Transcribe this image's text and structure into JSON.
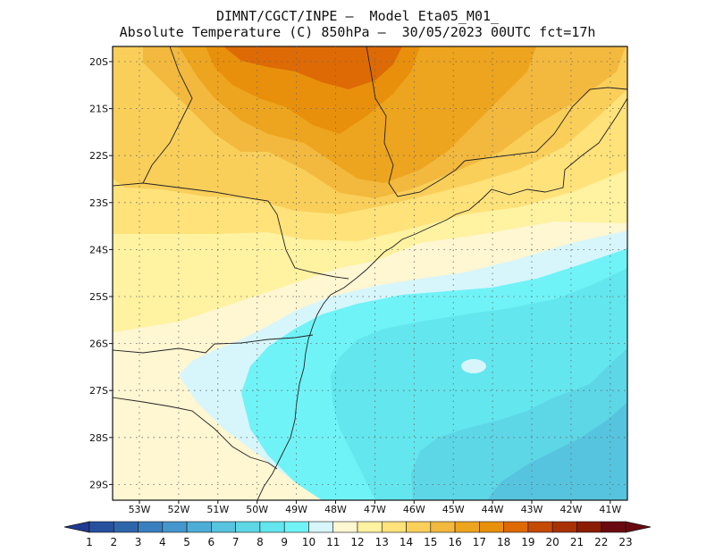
{
  "header": {
    "line1": "DIMNT/CGCT/INPE –  Model Eta05_M01_",
    "line2": "Absolute Temperature (C) 850hPa –  30/05/2023 00UTC fct=17h"
  },
  "map": {
    "lat_labels": [
      "20S",
      "21S",
      "22S",
      "23S",
      "24S",
      "25S",
      "26S",
      "27S",
      "28S",
      "29S"
    ],
    "lon_labels": [
      "53W",
      "52W",
      "51W",
      "50W",
      "49W",
      "48W",
      "47W",
      "46W",
      "45W",
      "44W",
      "43W",
      "42W",
      "41W"
    ]
  },
  "colorbar": {
    "labels": [
      "1",
      "2",
      "3",
      "4",
      "5",
      "6",
      "7",
      "8",
      "9",
      "10",
      "11",
      "12",
      "13",
      "14",
      "15",
      "16",
      "17",
      "18",
      "19",
      "20",
      "21",
      "22",
      "23"
    ],
    "colors": [
      "#1f3a93",
      "#27509e",
      "#2f66aa",
      "#3a7fbf",
      "#4596cc",
      "#4eadd6",
      "#56c4de",
      "#5dd6e6",
      "#63e6ee",
      "#70f3f7",
      "#d6f6fb",
      "#fff6d2",
      "#fff2a0",
      "#ffe27a",
      "#f9cf5a",
      "#f2b93e",
      "#eda41e",
      "#e8900c",
      "#dd6a05",
      "#c44a05",
      "#a83205",
      "#8b1d04",
      "#6a0a10"
    ]
  }
}
